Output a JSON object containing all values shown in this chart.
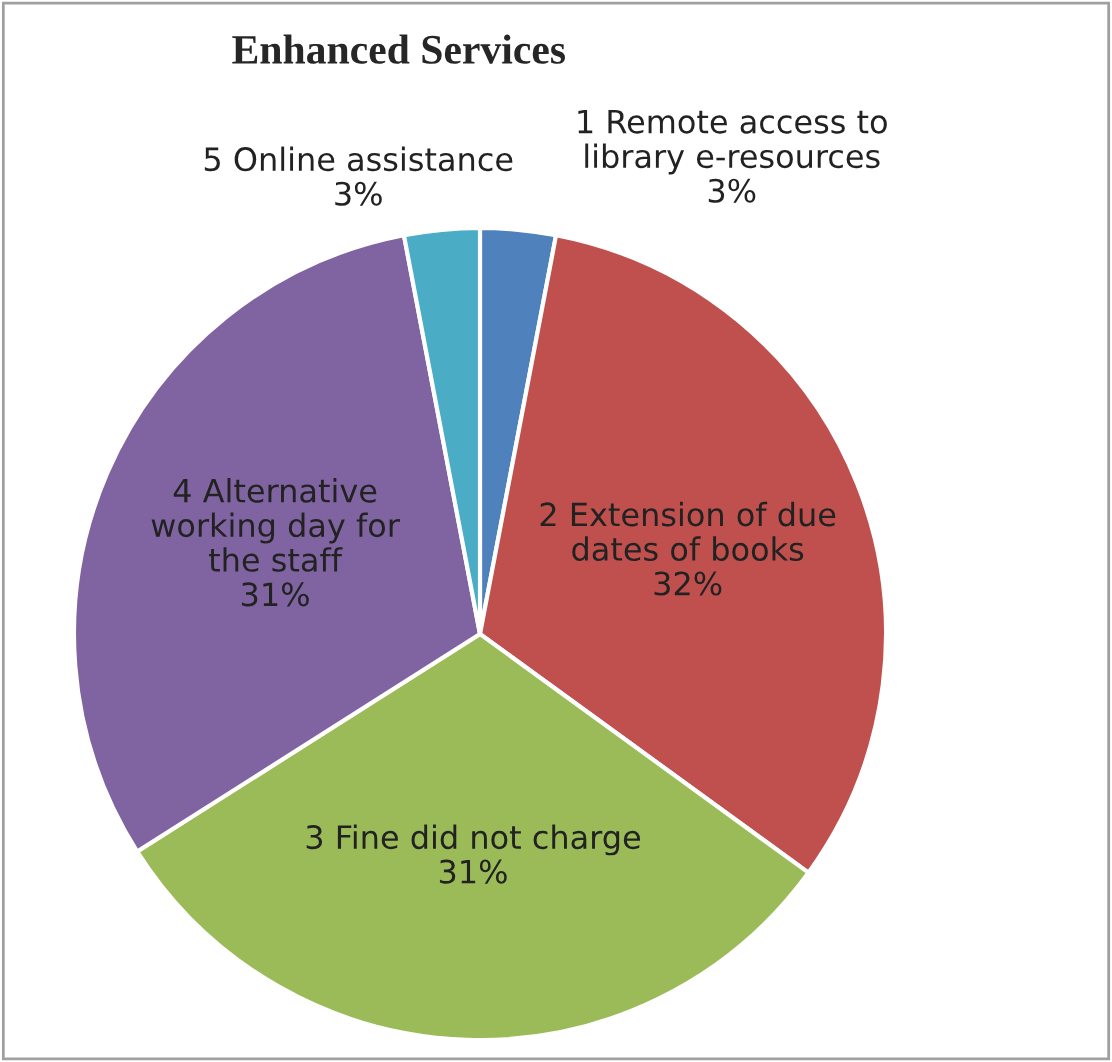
{
  "chart_data": {
    "type": "pie",
    "title": "Enhanced Services",
    "categories": [
      "1 Remote access to\nlibrary e-resources",
      "2 Extension of due\ndates of books",
      "3 Fine did not charge",
      "4 Alternative\nworking day for\nthe staff",
      "5 Online assistance"
    ],
    "values": [
      3,
      32,
      31,
      31,
      3
    ],
    "colors": [
      "#4f81bd",
      "#c0504d",
      "#9bbb59",
      "#8064a2",
      "#4bacc6"
    ],
    "value_labels": [
      "3%",
      "32%",
      "31%",
      "31%",
      "3%"
    ],
    "legend": false
  }
}
